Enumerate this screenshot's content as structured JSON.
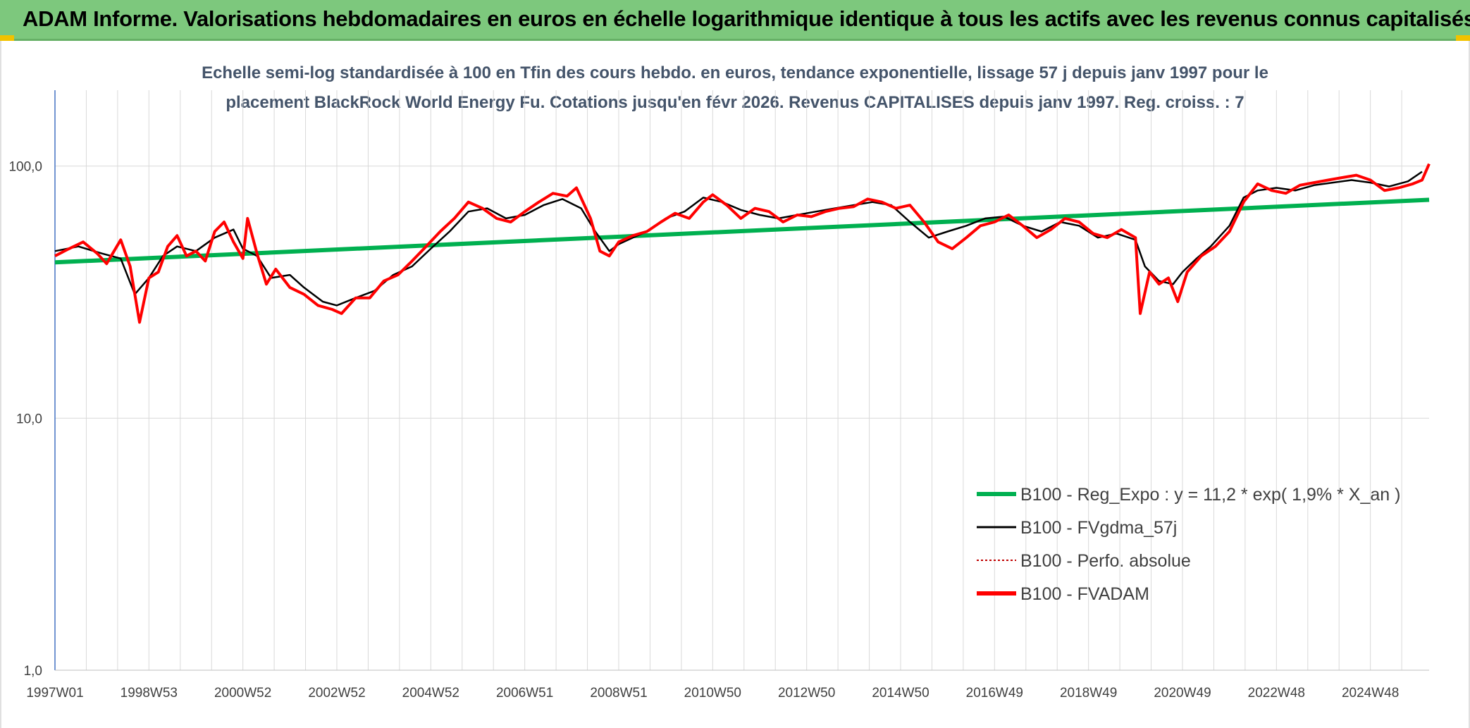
{
  "header": {
    "title": "ADAM Informe. Valorisations hebdomadaires en euros en échelle logarithmique identique à tous les actifs avec les revenus connus capitalisés"
  },
  "chart_data": {
    "type": "line",
    "title_line1": "Echelle semi-log standardisée à 100 en Tfin des cours hebdo. en euros, tendance exponentielle, lissage 57 j depuis janv 1997 pour le",
    "title_line2": "placement BlackRock World Energy Fu. Cotations jusqu'en févr 2026. Revenus CAPITALISES depuis janv 1997. Reg. croiss. : 7",
    "y_scale": "log",
    "ylim": [
      1,
      200
    ],
    "y_ticks": [
      "1,0",
      "10,0",
      "100,0"
    ],
    "y_tick_values": [
      1,
      10,
      100
    ],
    "x_tick_labels": [
      "1997W01",
      "1998W53",
      "2000W52",
      "2002W52",
      "2004W52",
      "2006W51",
      "2008W51",
      "2010W50",
      "2012W50",
      "2014W50",
      "2016W49",
      "2018W49",
      "2020W49",
      "2022W48",
      "2024W48"
    ],
    "x_tick_years": [
      1997.0,
      1999.0,
      2001.0,
      2003.0,
      2005.0,
      2007.0,
      2009.0,
      2011.0,
      2013.0,
      2015.0,
      2017.0,
      2019.0,
      2021.0,
      2023.0,
      2025.0
    ],
    "x_range": [
      1997.0,
      2026.25
    ],
    "grid": true,
    "legend_position": "bottom-right",
    "series": [
      {
        "name": "B100 - Reg_Expo : y = 11,2 * exp( 1,9% *  X_an )",
        "color": "#00b050",
        "style": "solid-thick",
        "x": [
          1997.0,
          2026.25
        ],
        "values": [
          41.5,
          73.5
        ]
      },
      {
        "name": "B100 - FVgdma_57j",
        "color": "#000000",
        "style": "solid",
        "x": [
          1997.0,
          1997.5,
          1998.0,
          1998.4,
          1998.7,
          1999.0,
          1999.3,
          1999.6,
          2000.0,
          2000.4,
          2000.8,
          2001.0,
          2001.3,
          2001.6,
          2002.0,
          2002.3,
          2002.7,
          2003.0,
          2003.4,
          2003.8,
          2004.2,
          2004.6,
          2005.0,
          2005.4,
          2005.8,
          2006.2,
          2006.6,
          2007.0,
          2007.4,
          2007.8,
          2008.2,
          2008.5,
          2008.8,
          2009.0,
          2009.3,
          2009.6,
          2010.0,
          2010.4,
          2010.8,
          2011.2,
          2011.6,
          2012.0,
          2012.4,
          2012.8,
          2013.2,
          2013.6,
          2014.0,
          2014.4,
          2014.8,
          2015.2,
          2015.6,
          2016.0,
          2016.4,
          2016.8,
          2017.2,
          2017.6,
          2018.0,
          2018.4,
          2018.8,
          2019.2,
          2019.6,
          2020.0,
          2020.2,
          2020.5,
          2020.8,
          2021.0,
          2021.3,
          2021.6,
          2022.0,
          2022.3,
          2022.6,
          2023.0,
          2023.4,
          2023.8,
          2024.2,
          2024.6,
          2025.0,
          2025.4,
          2025.8,
          2026.1
        ],
        "values": [
          46,
          48,
          45,
          43,
          31,
          36,
          44,
          48,
          46,
          52,
          56,
          47,
          44,
          36,
          37,
          33,
          29,
          28,
          30,
          32,
          37,
          40,
          47,
          55,
          66,
          68,
          62,
          64,
          70,
          74,
          68,
          55,
          46,
          49,
          52,
          55,
          62,
          66,
          75,
          72,
          67,
          64,
          62,
          64,
          66,
          68,
          70,
          72,
          70,
          60,
          52,
          55,
          58,
          62,
          63,
          58,
          55,
          60,
          58,
          52,
          54,
          51,
          40,
          35,
          34,
          38,
          43,
          48,
          58,
          75,
          80,
          82,
          80,
          84,
          86,
          88,
          86,
          83,
          87,
          95
        ]
      },
      {
        "name": "B100 - Perfo. absolue",
        "color": "#c00000",
        "style": "dotted",
        "x": [],
        "values": []
      },
      {
        "name": "B100 - FVADAM",
        "color": "#ff0000",
        "style": "solid-thick",
        "x": [
          1997.0,
          1997.3,
          1997.6,
          1997.9,
          1998.1,
          1998.4,
          1998.6,
          1998.8,
          1999.0,
          1999.2,
          1999.4,
          1999.6,
          1999.8,
          2000.0,
          2000.2,
          2000.4,
          2000.6,
          2000.8,
          2001.0,
          2001.1,
          2001.3,
          2001.5,
          2001.7,
          2002.0,
          2002.3,
          2002.6,
          2002.9,
          2003.1,
          2003.4,
          2003.7,
          2004.0,
          2004.3,
          2004.6,
          2004.9,
          2005.2,
          2005.5,
          2005.8,
          2006.1,
          2006.4,
          2006.7,
          2007.0,
          2007.3,
          2007.6,
          2007.9,
          2008.1,
          2008.4,
          2008.6,
          2008.8,
          2009.0,
          2009.3,
          2009.6,
          2009.9,
          2010.2,
          2010.5,
          2010.8,
          2011.0,
          2011.3,
          2011.6,
          2011.9,
          2012.2,
          2012.5,
          2012.8,
          2013.1,
          2013.4,
          2013.7,
          2014.0,
          2014.3,
          2014.6,
          2014.9,
          2015.2,
          2015.5,
          2015.8,
          2016.1,
          2016.4,
          2016.7,
          2017.0,
          2017.3,
          2017.6,
          2017.9,
          2018.2,
          2018.5,
          2018.8,
          2019.1,
          2019.4,
          2019.7,
          2020.0,
          2020.1,
          2020.3,
          2020.5,
          2020.7,
          2020.9,
          2021.1,
          2021.4,
          2021.7,
          2022.0,
          2022.3,
          2022.6,
          2022.9,
          2023.2,
          2023.5,
          2023.8,
          2024.1,
          2024.4,
          2024.7,
          2025.0,
          2025.3,
          2025.6,
          2025.9,
          2026.1,
          2026.25
        ],
        "values": [
          44,
          47,
          50,
          45,
          41,
          51,
          40,
          24,
          36,
          38,
          48,
          53,
          44,
          46,
          42,
          55,
          60,
          50,
          43,
          62,
          45,
          34,
          39,
          33,
          31,
          28,
          27,
          26,
          30,
          30,
          35,
          37,
          42,
          48,
          55,
          62,
          72,
          68,
          62,
          60,
          66,
          72,
          78,
          76,
          82,
          62,
          46,
          44,
          50,
          53,
          55,
          60,
          65,
          62,
          72,
          77,
          70,
          62,
          68,
          66,
          60,
          64,
          63,
          66,
          68,
          69,
          74,
          72,
          68,
          70,
          60,
          50,
          47,
          52,
          58,
          60,
          64,
          58,
          52,
          56,
          62,
          60,
          54,
          52,
          56,
          52,
          26,
          38,
          34,
          36,
          29,
          38,
          44,
          48,
          55,
          72,
          85,
          80,
          78,
          84,
          86,
          88,
          90,
          92,
          88,
          80,
          82,
          85,
          88,
          102
        ]
      }
    ]
  },
  "legend": [
    {
      "label": "B100 - Reg_Expo : y = 11,2 * exp( 1,9% *  X_an )",
      "color": "#00b050",
      "style": "thick"
    },
    {
      "label": "B100 - FVgdma_57j",
      "color": "#000000",
      "style": "thin"
    },
    {
      "label": "B100 - Perfo. absolue",
      "color": "#c00000",
      "style": "dotted"
    },
    {
      "label": "B100 - FVADAM",
      "color": "#ff0000",
      "style": "thick"
    }
  ]
}
